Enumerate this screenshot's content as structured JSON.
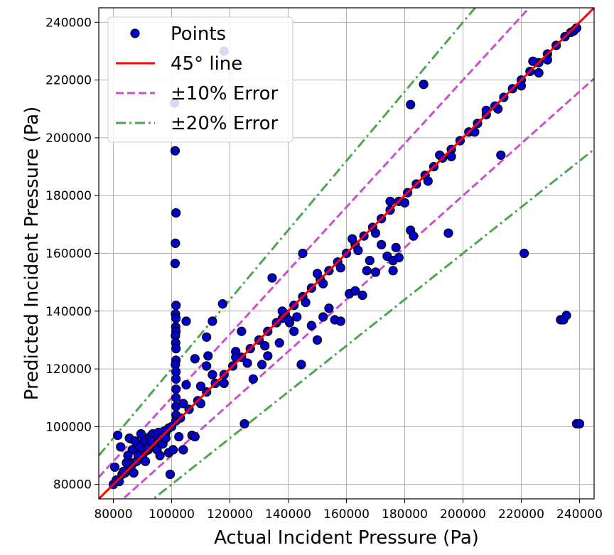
{
  "chart_data": {
    "type": "scatter",
    "title": "",
    "xlabel": "Actual Incident Pressure (Pa)",
    "ylabel": "Predicted Incident Pressure (Pa)",
    "xlim": [
      75000,
      245000
    ],
    "ylim": [
      75000,
      245000
    ],
    "xticks": [
      80000,
      100000,
      120000,
      140000,
      160000,
      180000,
      200000,
      220000,
      240000
    ],
    "yticks": [
      80000,
      100000,
      120000,
      140000,
      160000,
      180000,
      200000,
      220000,
      240000
    ],
    "grid": true,
    "legend": {
      "placement": "top-left",
      "entries": [
        "Points",
        "45° line",
        "±10% Error",
        "±20% Error"
      ]
    },
    "colors": {
      "points_fill": "#0000cc",
      "points_edge": "#000000",
      "line45": "#ff0000",
      "err10": "#cc4fcc",
      "err20": "#4da64d"
    },
    "series": [
      {
        "name": "Points",
        "points": [
          [
            80000,
            80000
          ],
          [
            81000,
            81500
          ],
          [
            82000,
            81000
          ],
          [
            83000,
            83500
          ],
          [
            84000,
            84000
          ],
          [
            85000,
            85500
          ],
          [
            86000,
            86000
          ],
          [
            87000,
            87500
          ],
          [
            88000,
            88000
          ],
          [
            89000,
            89500
          ],
          [
            90000,
            90000
          ],
          [
            91000,
            91500
          ],
          [
            92000,
            92000
          ],
          [
            93000,
            93500
          ],
          [
            94000,
            94000
          ],
          [
            95000,
            95500
          ],
          [
            96000,
            96000
          ],
          [
            97000,
            97500
          ],
          [
            98000,
            98000
          ],
          [
            99000,
            99500
          ],
          [
            80500,
            86000
          ],
          [
            81500,
            97000
          ],
          [
            82500,
            93000
          ],
          [
            83500,
            84500
          ],
          [
            84500,
            87500
          ],
          [
            85500,
            96000
          ],
          [
            86500,
            92000
          ],
          [
            87500,
            95000
          ],
          [
            88500,
            90000
          ],
          [
            89500,
            97500
          ],
          [
            90500,
            95000
          ],
          [
            91500,
            92500
          ],
          [
            92500,
            96500
          ],
          [
            93500,
            97500
          ],
          [
            94500,
            95500
          ],
          [
            95500,
            98000
          ],
          [
            96500,
            96000
          ],
          [
            97500,
            98500
          ],
          [
            85000,
            90000
          ],
          [
            87000,
            84000
          ],
          [
            89000,
            93000
          ],
          [
            91000,
            88000
          ],
          [
            93000,
            95000
          ],
          [
            95000,
            92000
          ],
          [
            97000,
            94000
          ],
          [
            99000,
            91000
          ],
          [
            96000,
            90000
          ],
          [
            98000,
            96000
          ],
          [
            99500,
            83500
          ],
          [
            100500,
            92000
          ],
          [
            101000,
            212000
          ],
          [
            101200,
            195500
          ],
          [
            101500,
            174000
          ],
          [
            101300,
            163500
          ],
          [
            101200,
            156500
          ],
          [
            101500,
            142000
          ],
          [
            101300,
            139000
          ],
          [
            101500,
            137500
          ],
          [
            101400,
            134500
          ],
          [
            101500,
            133000
          ],
          [
            101300,
            131500
          ],
          [
            101400,
            129000
          ],
          [
            101500,
            127000
          ],
          [
            101500,
            123000
          ],
          [
            101300,
            121500
          ],
          [
            101500,
            119000
          ],
          [
            101500,
            116500
          ],
          [
            101500,
            113000
          ],
          [
            101500,
            110000
          ],
          [
            101500,
            107000
          ],
          [
            101500,
            104000
          ],
          [
            101500,
            102000
          ],
          [
            102500,
            96500
          ],
          [
            104000,
            92000
          ],
          [
            105000,
            114500
          ],
          [
            105000,
            136500
          ],
          [
            107000,
            97000
          ],
          [
            108000,
            96500
          ],
          [
            108000,
            123500
          ],
          [
            110000,
            114000
          ],
          [
            112000,
            131000
          ],
          [
            112500,
            124500
          ],
          [
            112000,
            121000
          ],
          [
            114000,
            136500
          ],
          [
            117500,
            142500
          ],
          [
            118000,
            230000
          ],
          [
            122000,
            126000
          ],
          [
            124000,
            133000
          ],
          [
            125000,
            101000
          ],
          [
            128000,
            116500
          ],
          [
            131000,
            121500
          ],
          [
            133000,
            124500
          ],
          [
            134500,
            151500
          ],
          [
            137000,
            129000
          ],
          [
            138000,
            137500
          ],
          [
            140500,
            136000
          ],
          [
            142000,
            133000
          ],
          [
            143000,
            138000
          ],
          [
            144500,
            121500
          ],
          [
            145000,
            160000
          ],
          [
            148000,
            135000
          ],
          [
            150000,
            130000
          ],
          [
            152000,
            138000
          ],
          [
            154000,
            141000
          ],
          [
            156000,
            137000
          ],
          [
            158000,
            136500
          ],
          [
            161000,
            146000
          ],
          [
            163000,
            147000
          ],
          [
            165500,
            145500
          ],
          [
            167000,
            154000
          ],
          [
            168000,
            157500
          ],
          [
            170000,
            153500
          ],
          [
            172000,
            163000
          ],
          [
            174000,
            159000
          ],
          [
            176000,
            154000
          ],
          [
            176000,
            157500
          ],
          [
            177000,
            162000
          ],
          [
            178000,
            158500
          ],
          [
            182000,
            211500
          ],
          [
            182000,
            168000
          ],
          [
            183000,
            166000
          ],
          [
            186500,
            218500
          ],
          [
            195000,
            167000
          ],
          [
            213000,
            194000
          ],
          [
            221000,
            160000
          ],
          [
            233500,
            137000
          ],
          [
            234500,
            137000
          ],
          [
            235500,
            138500
          ],
          [
            239000,
            101000
          ],
          [
            240000,
            101000
          ],
          [
            100000,
            100000
          ],
          [
            103000,
            103000
          ],
          [
            106000,
            106000
          ],
          [
            109000,
            109000
          ],
          [
            112000,
            112000
          ],
          [
            115000,
            115000
          ],
          [
            118000,
            118000
          ],
          [
            121000,
            121000
          ],
          [
            124000,
            124000
          ],
          [
            127000,
            127000
          ],
          [
            130000,
            130000
          ],
          [
            133000,
            133000
          ],
          [
            136000,
            136000
          ],
          [
            139000,
            139000
          ],
          [
            142000,
            142000
          ],
          [
            145000,
            145000
          ],
          [
            148000,
            148000
          ],
          [
            151000,
            151000
          ],
          [
            154000,
            154000
          ],
          [
            157000,
            157000
          ],
          [
            160000,
            160000
          ],
          [
            163000,
            163000
          ],
          [
            166000,
            166000
          ],
          [
            169000,
            169000
          ],
          [
            172000,
            172000
          ],
          [
            175000,
            175000
          ],
          [
            178000,
            178000
          ],
          [
            181000,
            181000
          ],
          [
            184000,
            184000
          ],
          [
            187000,
            187000
          ],
          [
            190000,
            190000
          ],
          [
            193000,
            193000
          ],
          [
            196000,
            196000
          ],
          [
            199000,
            199000
          ],
          [
            202000,
            202000
          ],
          [
            205000,
            205000
          ],
          [
            208000,
            208000
          ],
          [
            211000,
            211000
          ],
          [
            214000,
            214000
          ],
          [
            217000,
            217000
          ],
          [
            220000,
            220000
          ],
          [
            223000,
            223000
          ],
          [
            226000,
            226000
          ],
          [
            229000,
            229000
          ],
          [
            232000,
            232000
          ],
          [
            235000,
            235000
          ],
          [
            237000,
            236500
          ],
          [
            238000,
            237000
          ],
          [
            239000,
            238000
          ],
          [
            110000,
            108000
          ],
          [
            118000,
            115000
          ],
          [
            126000,
            122000
          ],
          [
            132000,
            128000
          ],
          [
            140000,
            137000
          ],
          [
            146000,
            143000
          ],
          [
            152000,
            149500
          ],
          [
            158000,
            155000
          ],
          [
            164000,
            161000
          ],
          [
            170000,
            167000
          ],
          [
            180000,
            177500
          ],
          [
            188000,
            185000
          ],
          [
            196000,
            193500
          ],
          [
            204000,
            202000
          ],
          [
            212000,
            210000
          ],
          [
            220000,
            218000
          ],
          [
            226000,
            222500
          ],
          [
            229000,
            227000
          ],
          [
            104000,
            108000
          ],
          [
            114000,
            118000
          ],
          [
            122000,
            124000
          ],
          [
            138000,
            140000
          ],
          [
            150000,
            153000
          ],
          [
            162000,
            165000
          ],
          [
            175000,
            178000
          ],
          [
            192000,
            194000
          ],
          [
            208000,
            209500
          ],
          [
            224000,
            226500
          ]
        ]
      },
      {
        "name": "45° line",
        "slope": 1.0
      },
      {
        "name": "±10% Error",
        "slopes": [
          1.1,
          0.9
        ]
      },
      {
        "name": "±20% Error",
        "slopes": [
          1.2,
          0.8
        ]
      }
    ]
  }
}
